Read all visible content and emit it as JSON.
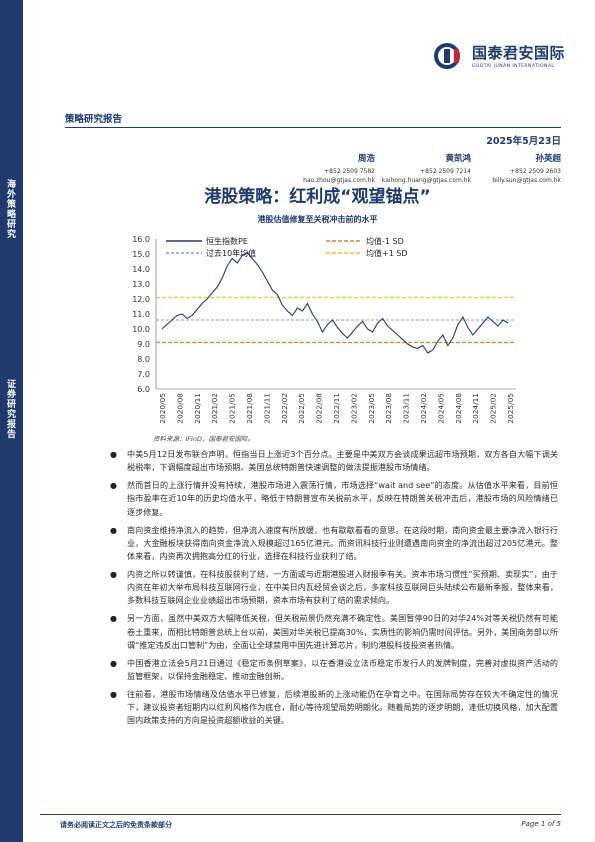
{
  "side": {
    "label_top": "海外策略研究",
    "label_bottom": "证券研究报告"
  },
  "logo": {
    "name_cn": "国泰君安国际",
    "name_en": "GUOTAI JUNAN INTERNATIONAL"
  },
  "header": {
    "report_type": "策略研究报告",
    "date": "2025年5月23日"
  },
  "authors": [
    {
      "name": "周浩",
      "phone": "+852 2509 7582",
      "email": "hao.zhou@gtjas.com.hk"
    },
    {
      "name": "黄凯鸿",
      "phone": "+852 2509 7214",
      "email": "kaihong.huang@gtjas.com.hk"
    },
    {
      "name": "孙英超",
      "phone": "+852 2509 2603",
      "email": "billy.sun@gtjas.com.hk"
    }
  ],
  "title": "港股策略：红利成“观望锚点”",
  "subtitle": "港股估值修复至关税冲击前的水平",
  "chart_data": {
    "type": "line",
    "title": "港股估值修复至关税冲击前的水平",
    "ylim": [
      6.0,
      16.0
    ],
    "yticks": [
      "16.0",
      "15.0",
      "14.0",
      "13.0",
      "12.0",
      "11.0",
      "10.0",
      "9.0",
      "8.0",
      "7.0",
      "6.0"
    ],
    "xticks": [
      "2020/05",
      "2020/08",
      "2020/11",
      "2021/02",
      "2021/05",
      "2021/08",
      "2021/11",
      "2022/02",
      "2022/05",
      "2022/08",
      "2022/11",
      "2023/02",
      "2023/05",
      "2023/08",
      "2023/11",
      "2024/02",
      "2024/05",
      "2024/08",
      "2024/11",
      "2025/02",
      "2025/05"
    ],
    "legend": [
      "恒生指数PE",
      "过去10年均值",
      "均值-1 SD",
      "均值+1 SD"
    ],
    "legend_placement": "top",
    "reference_lines": {
      "mean": 10.6,
      "mean_minus_1sd": 9.1,
      "mean_plus_1sd": 12.1
    },
    "colors": {
      "pe": "#1f3a6b",
      "mean": "#9a9a9a",
      "minus_sd": "#d9822b",
      "plus_sd": "#e8c43a"
    },
    "series": [
      {
        "name": "恒生指数PE",
        "values": [
          10.0,
          10.3,
          10.6,
          10.9,
          11.0,
          10.7,
          10.9,
          11.3,
          11.7,
          12.0,
          12.4,
          12.8,
          13.4,
          14.2,
          14.7,
          14.4,
          14.9,
          15.1,
          14.7,
          14.3,
          13.8,
          13.2,
          12.6,
          12.3,
          11.6,
          11.2,
          10.9,
          11.4,
          11.2,
          11.7,
          11.0,
          10.5,
          9.8,
          10.3,
          10.6,
          10.1,
          9.7,
          9.4,
          9.8,
          10.2,
          10.5,
          10.0,
          9.8,
          10.4,
          10.7,
          10.2,
          9.9,
          9.6,
          9.3,
          9.0,
          8.8,
          8.7,
          8.9,
          8.4,
          8.6,
          9.2,
          9.6,
          8.9,
          9.4,
          10.3,
          10.8,
          10.1,
          9.6,
          10.0,
          10.4,
          10.8,
          10.5,
          10.2,
          10.6,
          10.4
        ]
      }
    ]
  },
  "source": "资料来源：iFinD，国泰君安国际。",
  "bullets": [
    "中美5月12日发布联合声明，恒指当日上涨近3个百分点。主要是中美双方会谈成果远超市场预期，双方各自大幅下调关税税率，下调幅度超出市场预期。美国总统特朗普快速调整的做法提振港股市场情绪。",
    "然而首日的上涨行情并没有持续，港股市场进入震荡行情，市场选择“wait and see”的态度。从估值水平来看，目前恒指市盈率在近10年的历史均值水平，略低于特朗普宣布关税前水平，反映在特朗普关税冲击后，港股市场的风险情绪已逐步修复。",
    "南向资金维持净流入的趋势，但净流入速度有所放缓，也有歇歇看看的意思。在这段时期，南向资金最主要净流入银行行业，大金融板块获得南向资金净流入规模超过165亿港元。而资讯科技行业则遭遇南向资金的净流出超过205亿港元。整体来看，内资再次拥抱高分红的行业，选择在科技行业获利了结。",
    "内资之所以转谨慎，在科技股获利了结，一方面或与近期港股进入财报季有关。资本市场习惯性“买预期、卖现实”，由于内资在年初大举布局科技互联网行业，在中美日内瓦经贸会谈之后，多家科技互联网巨头陆续公布最新季报，整体来看，多数科技互联网企业业绩超出市场预期，资本市场有获利了结的需求倾向。",
    "另一方面，虽然中美双方大幅降低关税，但关税前景仍然充满不确定性。美国暂停90日的对华24%对等关税仍然有可能卷土重来，而相比特朗普总统上台以前，美国对华关税已提高30%，实质性的影响仍需时间评估。另外，美国商务部以所谓“推定违反出口管制”为由，全面让全球禁用中国先进计算芯片，制约港股科技投资者热情。",
    "中国香港立法会5月21日通过《稳定币条例草案》，以在香港设立法币稳定币发行人的发牌制度，完善对虚拟资产活动的监管框架，以保持金融稳定、推动金融创新。",
    "往前看，港股市场情绪及估值水平已修复，后续港股新的上涨动能仍在孕育之中。在国际局势存在较大不确定性的情况下，建议投资者短期内以红利风格作为底仓，耐心等待观望局势明朗化。随着局势的逐步明朗，逢低切换风格，加大配置国内政策支持的方向是投资超额收益的关键。"
  ],
  "footer": {
    "disclaimer": "请务必阅读正文之后的免责条款部分",
    "page": "Page 1 of 5"
  }
}
